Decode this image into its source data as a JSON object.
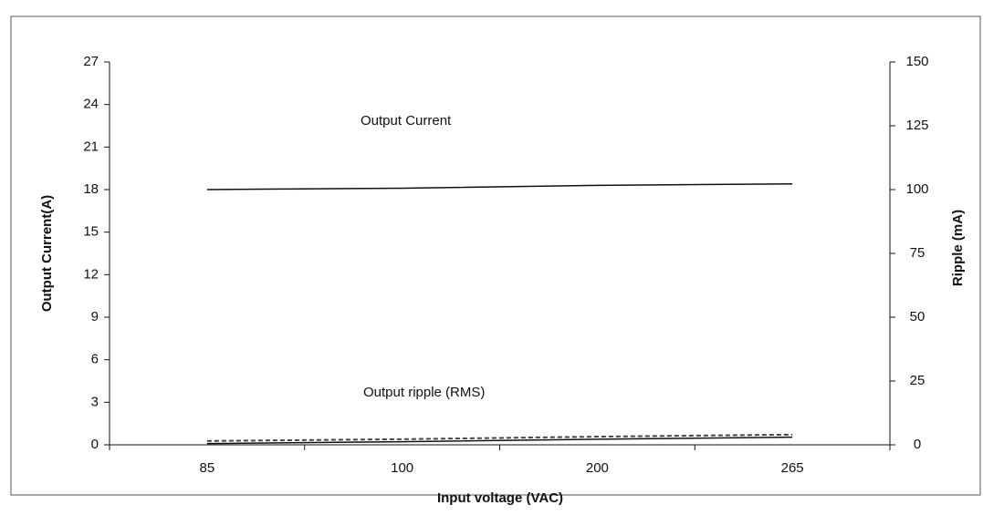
{
  "chart_data": {
    "type": "line",
    "categories": [
      "85",
      "100",
      "200",
      "265"
    ],
    "series": [
      {
        "color": "#111111",
        "values": [
          18.0,
          18.1,
          18.3,
          18.4
        ],
        "axis": "y"
      },
      {
        "color": "#111111",
        "values": [
          0.5,
          1.2,
          2.2,
          3.0
        ],
        "axis": "y2"
      },
      {
        "color": "#444444",
        "values": [
          1.5,
          2.2,
          3.2,
          4.0
        ],
        "axis": "y2",
        "dashed": true
      }
    ],
    "ylim": [
      0,
      27
    ],
    "yticks": [
      0,
      3,
      6,
      9,
      12,
      15,
      18,
      21,
      24,
      27
    ],
    "y2lim": [
      0,
      150
    ],
    "y2ticks": [
      0,
      25,
      50,
      75,
      100,
      125,
      150
    ],
    "xlabel": "Input voltage (VAC)",
    "ylabel": "Output Current(A)",
    "y2label": "Ripple (mA)",
    "annotations": [
      "Output  Current",
      "Output ripple (RMS)"
    ]
  }
}
